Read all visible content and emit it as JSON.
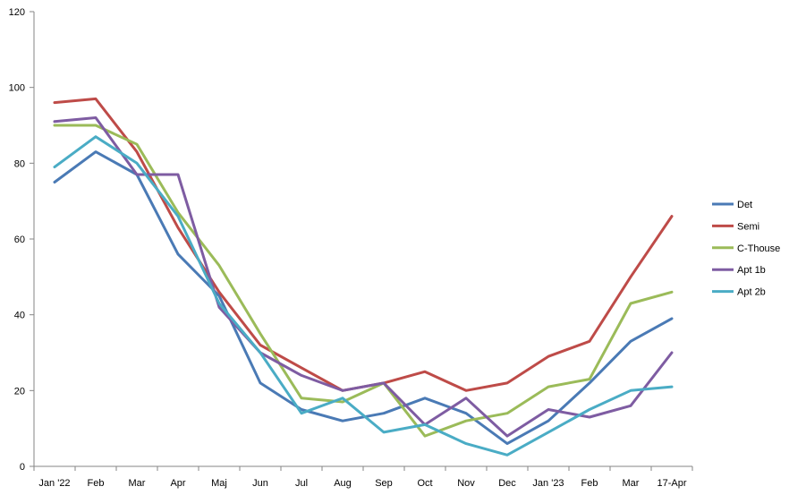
{
  "chart_data": {
    "type": "line",
    "title": "",
    "xlabel": "",
    "ylabel": "",
    "ylim": [
      0,
      120
    ],
    "yticks": [
      0,
      20,
      40,
      60,
      80,
      100,
      120
    ],
    "grid": false,
    "legend_position": "right",
    "categories": [
      "Jan '22",
      "Feb",
      "Mar",
      "Apr",
      "Maj",
      "Jun",
      "Jul",
      "Aug",
      "Sep",
      "Oct",
      "Nov",
      "Dec",
      "Jan '23",
      "Feb",
      "Mar",
      "17-Apr"
    ],
    "series": [
      {
        "name": "Det",
        "color": "#4a7ab5",
        "values": [
          75,
          83,
          77,
          56,
          45,
          22,
          15,
          12,
          14,
          18,
          14,
          6,
          12,
          22,
          33,
          39
        ]
      },
      {
        "name": "Semi",
        "color": "#be4b48",
        "values": [
          96,
          97,
          83,
          63,
          46,
          32,
          26,
          20,
          22,
          25,
          20,
          22,
          29,
          33,
          50,
          66
        ]
      },
      {
        "name": "C-Thouse",
        "color": "#9bbb59",
        "values": [
          90,
          90,
          85,
          67,
          53,
          35,
          18,
          17,
          22,
          8,
          12,
          14,
          21,
          23,
          43,
          46
        ]
      },
      {
        "name": "Apt 1b",
        "color": "#7e5ca2",
        "values": [
          91,
          92,
          77,
          77,
          42,
          30,
          24,
          20,
          22,
          11,
          18,
          8,
          15,
          13,
          16,
          30
        ]
      },
      {
        "name": "Apt 2b",
        "color": "#4aacc5",
        "values": [
          79,
          87,
          80,
          66,
          43,
          30,
          14,
          18,
          9,
          11,
          6,
          3,
          9,
          15,
          20,
          21
        ]
      }
    ]
  }
}
